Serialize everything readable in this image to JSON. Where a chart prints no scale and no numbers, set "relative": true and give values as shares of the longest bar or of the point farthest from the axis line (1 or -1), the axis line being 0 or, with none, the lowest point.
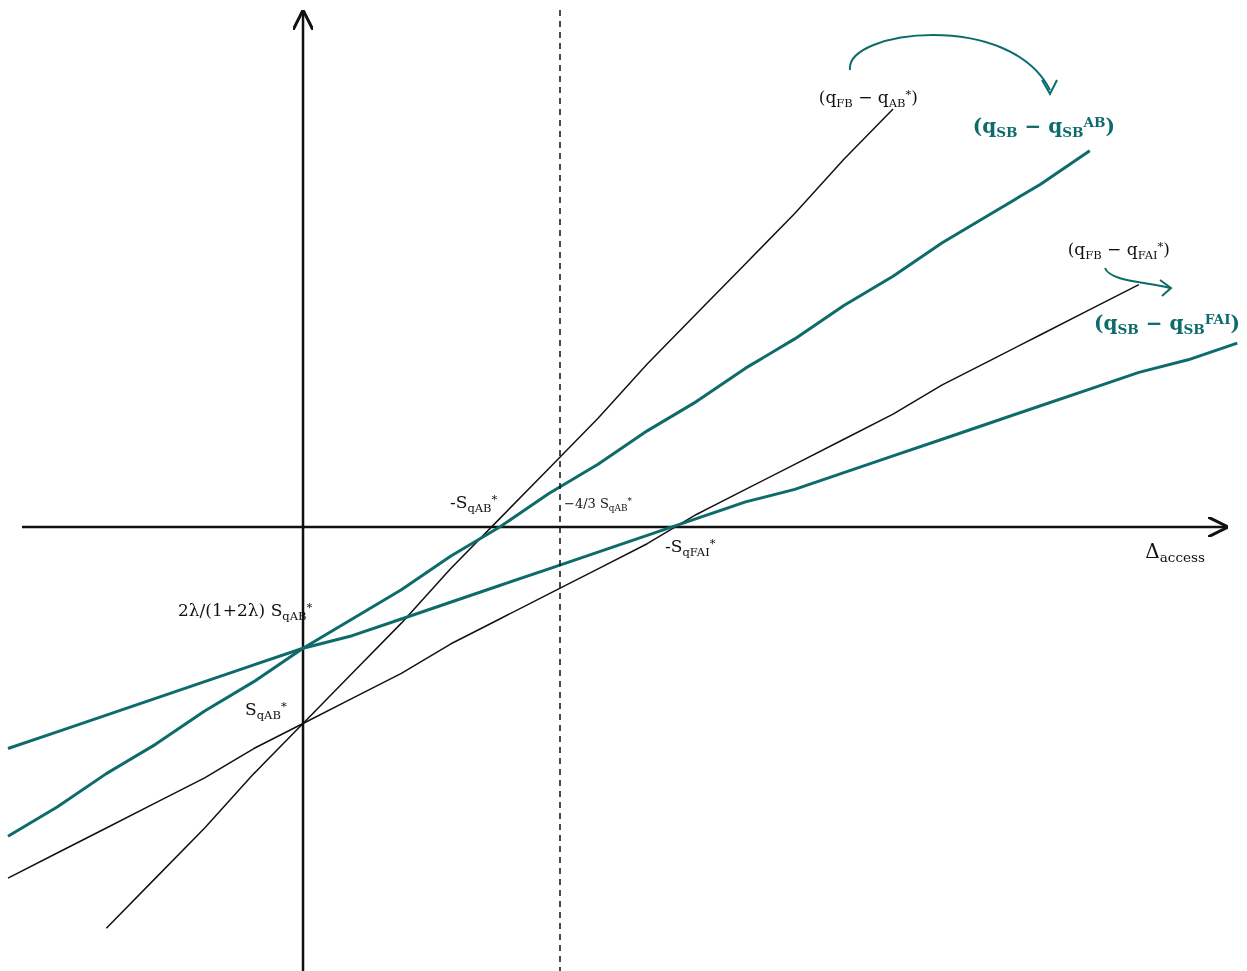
{
  "chart_data": {
    "type": "line",
    "relative": true,
    "xlabel": "Δ$_{access}$",
    "categories": [
      null,
      null,
      null,
      null,
      null,
      null,
      null,
      null,
      null,
      null,
      null,
      null,
      null,
      null,
      null,
      null,
      null,
      null,
      null,
      null,
      null,
      null,
      null,
      null,
      null,
      null
    ],
    "series": [
      {
        "name": "(q$_{FB}$ − q$_{AB}$$^{*}$)",
        "color": "#111111",
        "values": [
          null,
          null,
          -0.96,
          -0.84,
          -0.72,
          -0.59,
          -0.47,
          -0.35,
          -0.23,
          -0.1,
          0.02,
          0.14,
          0.26,
          0.39,
          0.51,
          0.63,
          0.75,
          0.88,
          1.0,
          null,
          null,
          null,
          null,
          null,
          null,
          null
        ]
      },
      {
        "name": "(q$_{SB}$ − q$_{SB}$$^{AB}$)",
        "color": "#0e6b6b",
        "values": [
          -0.74,
          -0.67,
          -0.59,
          -0.52,
          -0.44,
          -0.37,
          -0.29,
          -0.22,
          -0.15,
          -0.07,
          0.0,
          0.08,
          0.15,
          0.23,
          0.3,
          0.38,
          0.45,
          0.53,
          0.6,
          0.68,
          0.75,
          0.82,
          0.9,
          null,
          null,
          null
        ]
      },
      {
        "name": "(q$_{FB}$ − q$_{FAI}$$^{*}$)",
        "color": "#111111",
        "values": [
          -0.84,
          -0.78,
          -0.72,
          -0.66,
          -0.6,
          -0.53,
          -0.47,
          -0.41,
          -0.35,
          -0.28,
          -0.22,
          -0.16,
          -0.1,
          -0.04,
          0.03,
          0.09,
          0.15,
          0.21,
          0.27,
          0.34,
          0.4,
          0.46,
          0.52,
          0.58,
          null,
          null
        ]
      },
      {
        "name": "(q$_{SB}$ − q$_{SB}$$^{FAI}$)",
        "color": "#0e6b6b",
        "values": [
          -0.53,
          -0.49,
          -0.45,
          -0.41,
          -0.37,
          -0.33,
          -0.29,
          -0.26,
          -0.22,
          -0.18,
          -0.14,
          -0.1,
          -0.06,
          -0.02,
          0.02,
          0.06,
          0.09,
          0.13,
          0.17,
          0.21,
          0.25,
          0.29,
          0.33,
          0.37,
          0.4,
          0.44
        ]
      }
    ],
    "legend": "top right",
    "annotations": [
      "-S$_{qAB}$$^{*}$",
      "-S$_{qFAI}$$^{*}$",
      "2λ/(1+2λ) S$_{qAB}$$^{*}$",
      "S$_{qAB}$$^{*}$",
      "−4/3 S$_{qAB}$$^{*}$"
    ]
  }
}
